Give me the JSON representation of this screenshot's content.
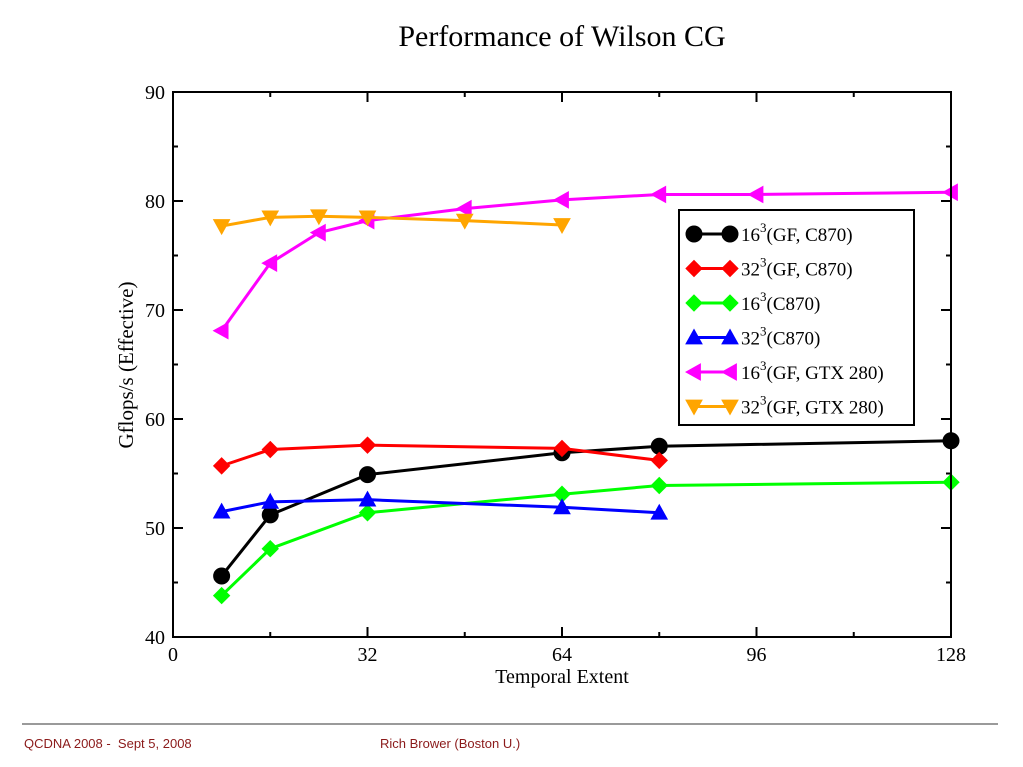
{
  "footer": {
    "left": "QCDNA 2008 -  Sept 5, 2008",
    "right": "Rich Brower (Boston U.)"
  },
  "chart_data": {
    "type": "line",
    "title": "Performance of Wilson CG",
    "xlabel": "Temporal Extent",
    "ylabel": "Gflops/s (Effective)",
    "xlim": [
      0,
      128
    ],
    "ylim": [
      40,
      90
    ],
    "xticks": [
      0,
      32,
      64,
      96,
      128
    ],
    "yticks": [
      40,
      50,
      60,
      70,
      80,
      90
    ],
    "legend_position": "right",
    "series": [
      {
        "name": "16",
        "sup": "3",
        "suffix": "(GF, C870)",
        "color": "#000000",
        "marker": "circle",
        "x": [
          8,
          16,
          32,
          64,
          80,
          128
        ],
        "y": [
          45.6,
          51.2,
          54.9,
          56.9,
          57.5,
          58.0
        ]
      },
      {
        "name": "32",
        "sup": "3",
        "suffix": "(GF, C870)",
        "color": "#ff0000",
        "marker": "diamond",
        "x": [
          8,
          16,
          32,
          64,
          80
        ],
        "y": [
          55.7,
          57.2,
          57.6,
          57.3,
          56.2
        ]
      },
      {
        "name": "16",
        "sup": "3",
        "suffix": "(C870)",
        "color": "#00ff00",
        "marker": "diamond",
        "x": [
          8,
          16,
          32,
          64,
          80,
          128
        ],
        "y": [
          43.8,
          48.1,
          51.4,
          53.1,
          53.9,
          54.2
        ]
      },
      {
        "name": "32",
        "sup": "3",
        "suffix": "(C870)",
        "color": "#0000ff",
        "marker": "triangle-up",
        "x": [
          8,
          16,
          32,
          64,
          80
        ],
        "y": [
          51.5,
          52.4,
          52.6,
          51.9,
          51.4
        ]
      },
      {
        "name": "16",
        "sup": "3",
        "suffix": "(GF, GTX 280)",
        "color": "#ff00ff",
        "marker": "triangle-left",
        "x": [
          8,
          16,
          24,
          32,
          48,
          64,
          80,
          96,
          128
        ],
        "y": [
          68.1,
          74.3,
          77.1,
          78.2,
          79.3,
          80.1,
          80.6,
          80.6,
          80.8
        ]
      },
      {
        "name": "32",
        "sup": "3",
        "suffix": "(GF, GTX 280)",
        "color": "#ffa500",
        "marker": "triangle-down",
        "x": [
          8,
          16,
          24,
          32,
          48,
          64
        ],
        "y": [
          77.7,
          78.5,
          78.6,
          78.5,
          78.2,
          77.8
        ]
      }
    ]
  }
}
